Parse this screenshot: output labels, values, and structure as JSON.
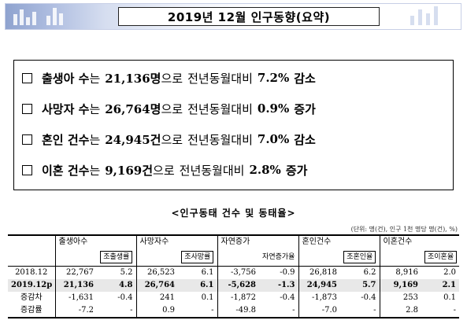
{
  "title": "2019년 12월 인구동향(요약)",
  "summary": [
    {
      "subject": "출생아 수",
      "particle": "는",
      "value": "21,136명",
      "mid": "으로",
      "compare": "전년동월대비",
      "pct": "7.2%",
      "dir": "감소"
    },
    {
      "subject": "사망자 수",
      "particle": "는",
      "value": "26,764명",
      "mid": "으로",
      "compare": "전년동월대비",
      "pct": "0.9%",
      "dir": "증가"
    },
    {
      "subject": "혼인 건수",
      "particle": "는",
      "value": "24,945건",
      "mid": "으로",
      "compare": "전년동월대비",
      "pct": "7.0%",
      "dir": "감소"
    },
    {
      "subject": "이혼 건수",
      "particle": "는",
      "value": "9,169건",
      "mid": "으로",
      "compare": "전년동월대비",
      "pct": "2.8%",
      "dir": "증가"
    }
  ],
  "table": {
    "title": "<인구동태 건수 및 동태율>",
    "unit": "(단위: 명(건), 인구 1천 명당 명(건), %)",
    "groups": [
      "출생아수",
      "사망자수",
      "자연증가",
      "혼인건수",
      "이혼건수"
    ],
    "subheads": [
      "조출생률",
      "조사망률",
      "자연증가율",
      "조혼인율",
      "조이혼율"
    ],
    "rows": [
      {
        "label": "2018.12",
        "cells": [
          "22,767",
          "5.2",
          "26,523",
          "6.1",
          "-3,756",
          "-0.9",
          "26,818",
          "6.2",
          "8,916",
          "2.0"
        ]
      },
      {
        "label": "2019.12p",
        "cells": [
          "21,136",
          "4.8",
          "26,764",
          "6.1",
          "-5,628",
          "-1.3",
          "24,945",
          "5.7",
          "9,169",
          "2.1"
        ]
      },
      {
        "label": "증감차",
        "cells": [
          "-1,631",
          "-0.4",
          "241",
          "0.1",
          "-1,872",
          "-0.4",
          "-1,873",
          "-0.4",
          "253",
          "0.1"
        ]
      },
      {
        "label": "증감률",
        "cells": [
          "-7.2",
          "-",
          "0.9",
          "-",
          "-49.8",
          "-",
          "-7.0",
          "-",
          "2.8",
          "-"
        ]
      }
    ]
  }
}
